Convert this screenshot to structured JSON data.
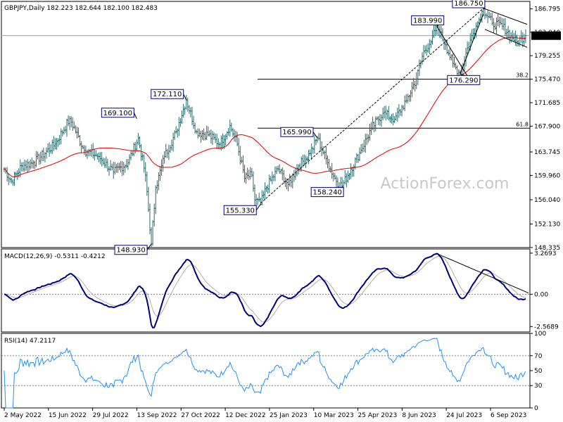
{
  "header": {
    "symbol_info": "GBPJPY,Daily  182.223 182.644 182.100 182.483",
    "macd_info": "MACD(12,26,9) -0.5311 -0.4212",
    "rsi_info": "RSI(14) 47.2117"
  },
  "watermark": "ActionForex.com",
  "chart_data": [
    {
      "type": "ohlc",
      "x_axis_labels": [
        "2 May 2022",
        "15 Jun 2022",
        "29 Jul 2022",
        "13 Sep 2022",
        "27 Oct 2022",
        "12 Dec 2022",
        "25 Jan 2023",
        "10 Mar 2023",
        "25 Apr 2023",
        "8 Jun 2023",
        "24 Jul 2023",
        "6 Sep 2023"
      ],
      "y_ticks": [
        "186.795",
        "183.040",
        "179.255",
        "175.470",
        "171.685",
        "167.900",
        "163.745",
        "159.960",
        "156.040",
        "152.130",
        "148.335"
      ],
      "ylim": [
        148.335,
        188.0
      ],
      "current_price": "182.483",
      "price_keypoints": [
        {
          "d": 0,
          "p": 161.0
        },
        {
          "d": 5,
          "p": 159.0
        },
        {
          "d": 12,
          "p": 161.5
        },
        {
          "d": 20,
          "p": 162.0
        },
        {
          "d": 35,
          "p": 165.0
        },
        {
          "d": 45,
          "p": 169.1
        },
        {
          "d": 55,
          "p": 164.0
        },
        {
          "d": 65,
          "p": 163.0
        },
        {
          "d": 75,
          "p": 160.5
        },
        {
          "d": 85,
          "p": 162.0
        },
        {
          "d": 92,
          "p": 166.0
        },
        {
          "d": 97,
          "p": 160.0
        },
        {
          "d": 101,
          "p": 148.93
        },
        {
          "d": 104,
          "p": 158.0
        },
        {
          "d": 110,
          "p": 163.0
        },
        {
          "d": 118,
          "p": 167.0
        },
        {
          "d": 125,
          "p": 172.11
        },
        {
          "d": 132,
          "p": 167.0
        },
        {
          "d": 140,
          "p": 166.5
        },
        {
          "d": 148,
          "p": 165.0
        },
        {
          "d": 155,
          "p": 168.0
        },
        {
          "d": 160,
          "p": 165.0
        },
        {
          "d": 165,
          "p": 159.5
        },
        {
          "d": 170,
          "p": 160.0
        },
        {
          "d": 172,
          "p": 156.0
        },
        {
          "d": 176,
          "p": 155.33
        },
        {
          "d": 180,
          "p": 158.0
        },
        {
          "d": 188,
          "p": 161.0
        },
        {
          "d": 195,
          "p": 158.5
        },
        {
          "d": 202,
          "p": 161.5
        },
        {
          "d": 210,
          "p": 163.5
        },
        {
          "d": 215,
          "p": 165.99
        },
        {
          "d": 222,
          "p": 162.0
        },
        {
          "d": 228,
          "p": 159.0
        },
        {
          "d": 232,
          "p": 158.24
        },
        {
          "d": 238,
          "p": 161.0
        },
        {
          "d": 245,
          "p": 164.0
        },
        {
          "d": 252,
          "p": 167.5
        },
        {
          "d": 260,
          "p": 170.0
        },
        {
          "d": 268,
          "p": 169.0
        },
        {
          "d": 276,
          "p": 172.0
        },
        {
          "d": 283,
          "p": 175.5
        },
        {
          "d": 288,
          "p": 180.0
        },
        {
          "d": 293,
          "p": 181.5
        },
        {
          "d": 297,
          "p": 183.99
        },
        {
          "d": 303,
          "p": 181.0
        },
        {
          "d": 308,
          "p": 178.0
        },
        {
          "d": 313,
          "p": 176.29
        },
        {
          "d": 318,
          "p": 180.5
        },
        {
          "d": 324,
          "p": 184.0
        },
        {
          "d": 329,
          "p": 186.75
        },
        {
          "d": 335,
          "p": 184.5
        },
        {
          "d": 342,
          "p": 184.0
        },
        {
          "d": 348,
          "p": 182.5
        },
        {
          "d": 352,
          "p": 181.5
        },
        {
          "d": 358,
          "p": 182.483
        }
      ],
      "annotations": [
        "186.750",
        "183.990",
        "176.290",
        "172.110",
        "169.100",
        "165.990",
        "158.240",
        "155.330",
        "148.930"
      ],
      "fib_labels": [
        "38.2",
        "61.8"
      ],
      "fib_levels": [
        175.47,
        167.57
      ],
      "reference_level": 182.483
    },
    {
      "type": "macd",
      "y_ticks": [
        "3.2693",
        "0.00",
        "-2.5689"
      ],
      "ylim": [
        -3.0,
        3.6
      ]
    },
    {
      "type": "rsi",
      "y_ticks": [
        "100",
        "70",
        "50",
        "30",
        "0"
      ],
      "ylim": [
        0,
        100
      ]
    }
  ],
  "colors": {
    "price": "#2e6a6a",
    "ma": "#dd0000",
    "macd": "#00007f",
    "signal": "#b0b0b0",
    "rsi": "#1e90ff",
    "frame": "#000000",
    "label_border": "#000080"
  }
}
